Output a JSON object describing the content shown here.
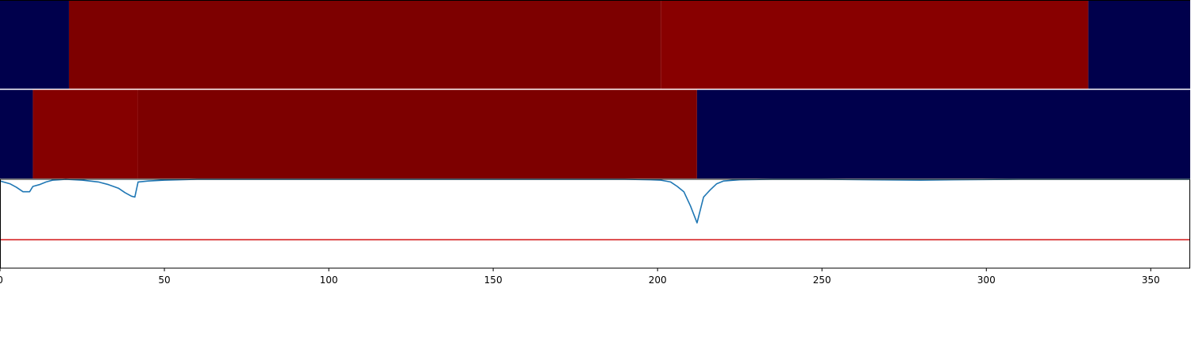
{
  "chart_data": [
    {
      "type": "heatmap",
      "panel": "top-row",
      "segments": [
        {
          "start": 0,
          "end": 21,
          "color": "#00004c"
        },
        {
          "start": 21,
          "end": 201,
          "color": "#7d0000"
        },
        {
          "start": 201,
          "end": 331,
          "color": "#880000"
        },
        {
          "start": 331,
          "end": 362,
          "color": "#00004c"
        }
      ]
    },
    {
      "type": "heatmap",
      "panel": "middle-row",
      "segments": [
        {
          "start": 0,
          "end": 10,
          "color": "#00004c"
        },
        {
          "start": 10,
          "end": 42,
          "color": "#850000"
        },
        {
          "start": 42,
          "end": 212,
          "color": "#7d0000"
        },
        {
          "start": 212,
          "end": 362,
          "color": "#00004c"
        }
      ]
    },
    {
      "type": "line",
      "panel": "bottom-row",
      "xlim": [
        0,
        362
      ],
      "ylim": [
        -1.0,
        0.0
      ],
      "grid": false,
      "x_ticks": [
        "0",
        "50",
        "100",
        "150",
        "200",
        "250",
        "300",
        "350"
      ],
      "x_tick_values": [
        0,
        50,
        100,
        150,
        200,
        250,
        300,
        350
      ],
      "series": [
        {
          "color": "#1f77b4",
          "x": [
            0,
            3,
            5,
            7,
            9,
            10,
            12,
            14,
            16,
            18,
            20,
            25,
            30,
            33,
            36,
            38,
            40,
            41,
            42,
            45,
            50,
            60,
            80,
            120,
            160,
            190,
            198,
            201,
            204,
            206,
            208,
            210,
            212,
            214,
            216,
            218,
            220,
            225,
            235,
            250,
            265,
            280,
            290,
            310,
            330,
            362
          ],
          "y": [
            -0.02,
            -0.05,
            -0.09,
            -0.14,
            -0.14,
            -0.08,
            -0.06,
            -0.03,
            -0.01,
            -0.005,
            0,
            -0.01,
            -0.03,
            -0.06,
            -0.1,
            -0.15,
            -0.19,
            -0.2,
            -0.03,
            -0.02,
            -0.01,
            0,
            0,
            0,
            0,
            0,
            -0.005,
            -0.01,
            -0.03,
            -0.08,
            -0.14,
            -0.3,
            -0.49,
            -0.2,
            -0.12,
            -0.05,
            -0.02,
            -0.005,
            0,
            0,
            -0.005,
            -0.01,
            -0.005,
            0,
            0,
            0
          ]
        },
        {
          "color": "#d62728",
          "x": [
            0,
            362
          ],
          "y": [
            -0.68,
            -0.68
          ]
        }
      ]
    }
  ]
}
